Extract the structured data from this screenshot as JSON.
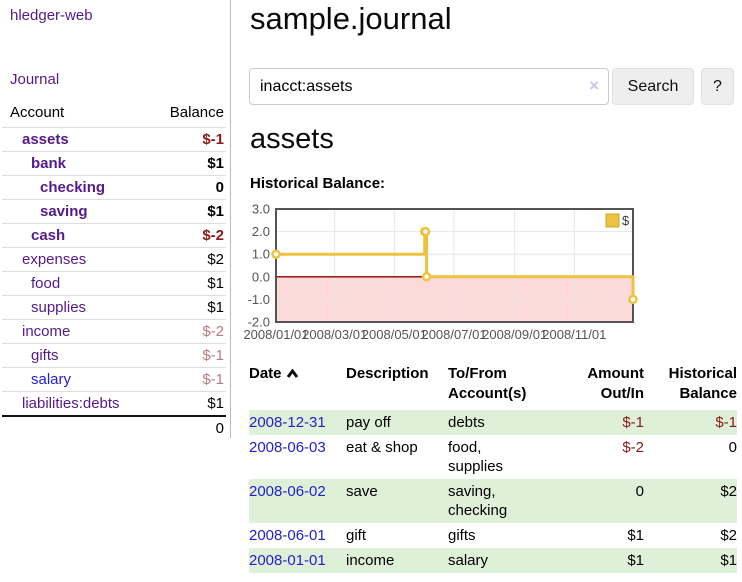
{
  "app": {
    "title": "hledger-web"
  },
  "sidebar": {
    "journal_link": "Journal",
    "accounts": {
      "headers": [
        "Account",
        "Balance"
      ],
      "rows": [
        {
          "account": "assets",
          "balance": "$-1",
          "depth": 1,
          "matched": true,
          "balance_style": "neg-strong",
          "link_style": "visited"
        },
        {
          "account": "bank",
          "balance": "$1",
          "depth": 2,
          "matched": true,
          "balance_style": "pos",
          "link_style": "visited"
        },
        {
          "account": "checking",
          "balance": "0",
          "depth": 3,
          "matched": true,
          "balance_style": "pos",
          "link_style": "visited"
        },
        {
          "account": "saving",
          "balance": "$1",
          "depth": 3,
          "matched": true,
          "balance_style": "pos",
          "link_style": "visited"
        },
        {
          "account": "cash",
          "balance": "$-2",
          "depth": 2,
          "matched": true,
          "balance_style": "neg-strong",
          "link_style": "visited"
        },
        {
          "account": "expenses",
          "balance": "$2",
          "depth": 1,
          "matched": false,
          "balance_style": "pos",
          "link_style": "visited"
        },
        {
          "account": "food",
          "balance": "$1",
          "depth": 2,
          "matched": false,
          "balance_style": "pos",
          "link_style": "visited"
        },
        {
          "account": "supplies",
          "balance": "$1",
          "depth": 2,
          "matched": false,
          "balance_style": "pos",
          "link_style": "visited"
        },
        {
          "account": "income",
          "balance": "$-2",
          "depth": 1,
          "matched": false,
          "balance_style": "neg-muted",
          "link_style": "visited"
        },
        {
          "account": "gifts",
          "balance": "$-1",
          "depth": 2,
          "matched": false,
          "balance_style": "neg-muted",
          "link_style": "visited"
        },
        {
          "account": "salary",
          "balance": "$-1",
          "depth": 2,
          "matched": false,
          "balance_style": "neg-muted",
          "link_style": "unvisited"
        },
        {
          "account": "liabilities:debts",
          "balance": "$1",
          "depth": 1,
          "matched": false,
          "balance_style": "pos",
          "link_style": "visited"
        }
      ],
      "total": "0"
    }
  },
  "main": {
    "title": "sample.journal",
    "search": {
      "value": "inacct:assets",
      "clear_icon": "×",
      "search_button": "Search",
      "help_button": "?"
    },
    "account_heading": "assets",
    "section_label": "Historical Balance:"
  },
  "chart_data": {
    "type": "line",
    "steps": true,
    "title": "Historical Balance",
    "x_range": [
      "2008/01/01",
      "2008/12/31"
    ],
    "ylim": [
      -2,
      3
    ],
    "y_ticks": [
      "3.0",
      "2.0",
      "1.0",
      "0.0",
      "-1.0",
      "-2.0"
    ],
    "x_ticks": [
      "2008/01/01",
      "2008/03/01",
      "2008/05/01",
      "2008/07/01",
      "2008/09/01",
      "2008/11/01"
    ],
    "series": [
      {
        "name": "$",
        "color": "#edc240",
        "points": [
          [
            "2008/01/01",
            1
          ],
          [
            "2008/06/01",
            2
          ],
          [
            "2008/06/02",
            2
          ],
          [
            "2008/06/03",
            0
          ],
          [
            "2008/12/31",
            -1
          ]
        ]
      }
    ],
    "legend_position": "top-right",
    "grid": true,
    "gridline_color": "#e5e5e5",
    "border_color": "#545454",
    "tick_label_color": "#545454",
    "negative_region_color": "#fcdada",
    "zero_line_color": "#8b0000"
  },
  "transactions": {
    "headers": {
      "date": "Date",
      "description": "Description",
      "accounts": "To/From Account(s)",
      "amount": "Amount Out/In",
      "balance": "Historical Balance"
    },
    "rows": [
      {
        "date": "2008-12-31",
        "description": "pay off",
        "accounts": "debts",
        "amount": "$-1",
        "amount_style": "neg-strong",
        "balance": "$-1",
        "balance_style": "neg-strong"
      },
      {
        "date": "2008-06-03",
        "description": "eat & shop",
        "accounts": "food, supplies",
        "amount": "$-2",
        "amount_style": "neg-strong",
        "balance": "0",
        "balance_style": "pos"
      },
      {
        "date": "2008-06-02",
        "description": "save",
        "accounts": "saving, checking",
        "amount": "0",
        "amount_style": "pos",
        "balance": "$2",
        "balance_style": "pos"
      },
      {
        "date": "2008-06-01",
        "description": "gift",
        "accounts": "gifts",
        "amount": "$1",
        "amount_style": "pos",
        "balance": "$2",
        "balance_style": "pos"
      },
      {
        "date": "2008-01-01",
        "description": "income",
        "accounts": "salary",
        "amount": "$1",
        "amount_style": "pos",
        "balance": "$1",
        "balance_style": "pos"
      }
    ]
  },
  "colors": {
    "link_purple": "#551a8b",
    "link_blue": "#2222cc",
    "negative_strong": "#8b1a1a",
    "negative_muted": "#b97c7c",
    "row_stripe_green": "#dff0d8",
    "series_gold": "#edc240",
    "button_gray": "#eeeeee"
  }
}
